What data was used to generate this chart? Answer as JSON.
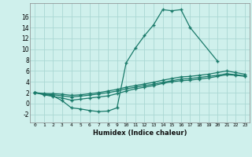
{
  "xlabel": "Humidex (Indice chaleur)",
  "bg_color": "#cff0ec",
  "grid_color": "#aad8d3",
  "line_color": "#1a7a6a",
  "ylim": [
    -3.5,
    18.5
  ],
  "xlim": [
    -0.5,
    23.5
  ],
  "yticks": [
    -2,
    0,
    2,
    4,
    6,
    8,
    10,
    12,
    14,
    16
  ],
  "xticks": [
    0,
    1,
    2,
    3,
    4,
    5,
    6,
    7,
    8,
    9,
    10,
    11,
    12,
    13,
    14,
    15,
    16,
    17,
    18,
    19,
    20,
    21,
    22,
    23
  ],
  "spike_x": [
    0,
    1,
    2,
    3,
    4,
    5,
    6,
    7,
    8,
    9,
    10,
    11,
    12,
    13,
    14,
    15,
    16,
    17,
    20
  ],
  "spike_y": [
    2,
    1.7,
    1.4,
    0.5,
    -0.8,
    -1.0,
    -1.3,
    -1.5,
    -1.4,
    -0.8,
    7.5,
    10.2,
    12.5,
    14.5,
    17.3,
    17.1,
    17.3,
    14.0,
    7.8
  ],
  "upper_x": [
    0,
    1,
    2,
    3,
    4,
    5,
    6,
    7,
    8,
    9,
    10,
    11,
    12,
    13,
    14,
    15,
    16,
    17,
    18,
    19,
    20,
    21,
    22,
    23
  ],
  "upper_y": [
    2.0,
    1.85,
    1.8,
    1.7,
    1.5,
    1.6,
    1.8,
    2.0,
    2.3,
    2.6,
    3.0,
    3.3,
    3.6,
    3.9,
    4.3,
    4.6,
    4.9,
    5.0,
    5.2,
    5.4,
    5.7,
    6.0,
    5.7,
    5.4
  ],
  "mid_x": [
    0,
    1,
    2,
    3,
    4,
    5,
    6,
    7,
    8,
    9,
    10,
    11,
    12,
    13,
    14,
    15,
    16,
    17,
    18,
    19,
    20,
    21,
    22,
    23
  ],
  "mid_y": [
    2.0,
    1.75,
    1.6,
    1.4,
    1.2,
    1.35,
    1.55,
    1.75,
    2.0,
    2.3,
    2.7,
    3.0,
    3.3,
    3.55,
    3.9,
    4.2,
    4.5,
    4.6,
    4.8,
    5.0,
    5.2,
    5.5,
    5.3,
    5.1
  ],
  "lower_x": [
    0,
    1,
    2,
    3,
    4,
    5,
    6,
    7,
    8,
    9,
    10,
    11,
    12,
    13,
    14,
    15,
    16,
    17,
    18,
    19,
    20,
    21,
    22,
    23
  ],
  "lower_y": [
    2.0,
    1.6,
    1.3,
    1.0,
    0.6,
    0.8,
    1.0,
    1.2,
    1.4,
    1.8,
    2.3,
    2.7,
    3.0,
    3.3,
    3.7,
    4.0,
    4.2,
    4.3,
    4.5,
    4.7,
    5.0,
    5.3,
    5.2,
    5.0
  ]
}
